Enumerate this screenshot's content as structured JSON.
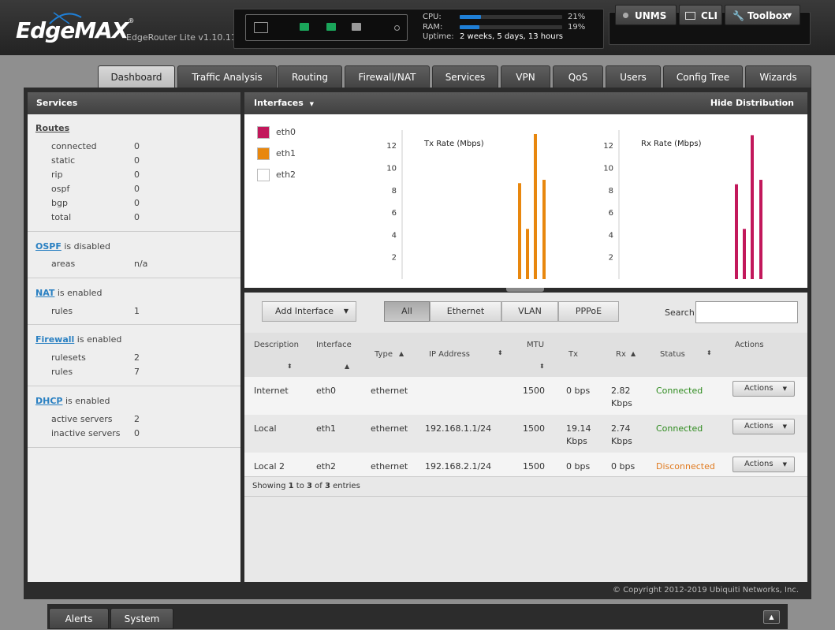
{
  "app": {
    "logo": "EdgeMAX",
    "logo_mark": "®",
    "model": "EdgeRouter Lite v1.10.11"
  },
  "system": {
    "cpu_label": "CPU:",
    "cpu_pct": "21%",
    "cpu_value": 21,
    "ram_label": "RAM:",
    "ram_pct": "19%",
    "ram_value": 19,
    "uptime_label": "Uptime:",
    "uptime": "2 weeks, 5 days, 13 hours"
  },
  "header_buttons": {
    "unms": "UNMS",
    "cli": "CLI",
    "toolbox": "Toolbox"
  },
  "tabs": [
    "Dashboard",
    "Traffic Analysis",
    "Routing",
    "Firewall/NAT",
    "Services",
    "VPN",
    "QoS",
    "Users",
    "Config Tree",
    "Wizards"
  ],
  "services": {
    "title": "Services",
    "routes": {
      "link": "Routes",
      "rows": [
        {
          "label": "connected",
          "value": "0"
        },
        {
          "label": "static",
          "value": "0"
        },
        {
          "label": "rip",
          "value": "0"
        },
        {
          "label": "ospf",
          "value": "0"
        },
        {
          "label": "bgp",
          "value": "0"
        },
        {
          "label": "total",
          "value": "0"
        }
      ]
    },
    "ospf": {
      "link": "OSPF",
      "status": " is disabled",
      "rows": [
        {
          "label": "areas",
          "value": "n/a"
        }
      ]
    },
    "nat": {
      "link": "NAT",
      "status": " is enabled",
      "rows": [
        {
          "label": "rules",
          "value": "1"
        }
      ]
    },
    "firewall": {
      "link": "Firewall",
      "status": " is enabled",
      "rows": [
        {
          "label": "rulesets",
          "value": "2"
        },
        {
          "label": "rules",
          "value": "7"
        }
      ]
    },
    "dhcp": {
      "link": "DHCP",
      "status": " is enabled",
      "rows": [
        {
          "label": "active servers",
          "value": "2"
        },
        {
          "label": "inactive servers",
          "value": "0"
        }
      ]
    }
  },
  "interfaces_panel": {
    "title": "Interfaces",
    "hide_distribution": "Hide Distribution"
  },
  "legend": [
    {
      "name": "eth0",
      "color": "#c2185b"
    },
    {
      "name": "eth1",
      "color": "#e8870e"
    },
    {
      "name": "eth2",
      "color": "#ffffff"
    }
  ],
  "chart_data": [
    {
      "type": "bar",
      "title": "Tx Rate (Mbps)",
      "ylim": [
        0,
        13
      ],
      "yticks": [
        2,
        4,
        6,
        8,
        10,
        12
      ],
      "series_color": "#e8870e",
      "values": [
        8.6,
        4.5,
        13.0,
        8.9
      ]
    },
    {
      "type": "bar",
      "title": "Rx Rate (Mbps)",
      "ylim": [
        0,
        13
      ],
      "yticks": [
        2,
        4,
        6,
        8,
        10,
        12
      ],
      "series_color": "#c2185b",
      "values": [
        8.5,
        4.5,
        12.9,
        8.9
      ]
    }
  ],
  "toolbar": {
    "add_interface": "Add Interface",
    "filters": [
      "All",
      "Ethernet",
      "VLAN",
      "PPPoE"
    ],
    "search_label": "Search",
    "search_value": ""
  },
  "table": {
    "headers": {
      "description": "Description",
      "interface": "Interface",
      "type": "Type",
      "ip": "IP Address",
      "mtu": "MTU",
      "tx": "Tx",
      "rx": "Rx",
      "status": "Status",
      "actions": "Actions"
    },
    "rows": [
      {
        "description": "Internet",
        "interface": "eth0",
        "type": "ethernet",
        "ip": "",
        "mtu": "1500",
        "tx": "0 bps",
        "rx": "2.82\nKbps",
        "status": "Connected",
        "status_color": "#2e8b1e",
        "action": "Actions"
      },
      {
        "description": "Local",
        "interface": "eth1",
        "type": "ethernet",
        "ip": "192.168.1.1/24",
        "mtu": "1500",
        "tx": "19.14\nKbps",
        "rx": "2.74\nKbps",
        "status": "Connected",
        "status_color": "#2e8b1e",
        "action": "Actions"
      },
      {
        "description": "Local 2",
        "interface": "eth2",
        "type": "ethernet",
        "ip": "192.168.2.1/24",
        "mtu": "1500",
        "tx": "0 bps",
        "rx": "0 bps",
        "status": "Disconnected",
        "status_color": "#e07a1f",
        "action": "Actions"
      }
    ],
    "showing_prefix": "Showing ",
    "showing_from": "1",
    "showing_to_word": " to ",
    "showing_to": "3",
    "showing_of_word": " of ",
    "showing_total": "3",
    "showing_suffix": " entries"
  },
  "copyright": "© Copyright 2012-2019 Ubiquiti Networks, Inc.",
  "footer_tabs": [
    "Alerts",
    "System"
  ]
}
